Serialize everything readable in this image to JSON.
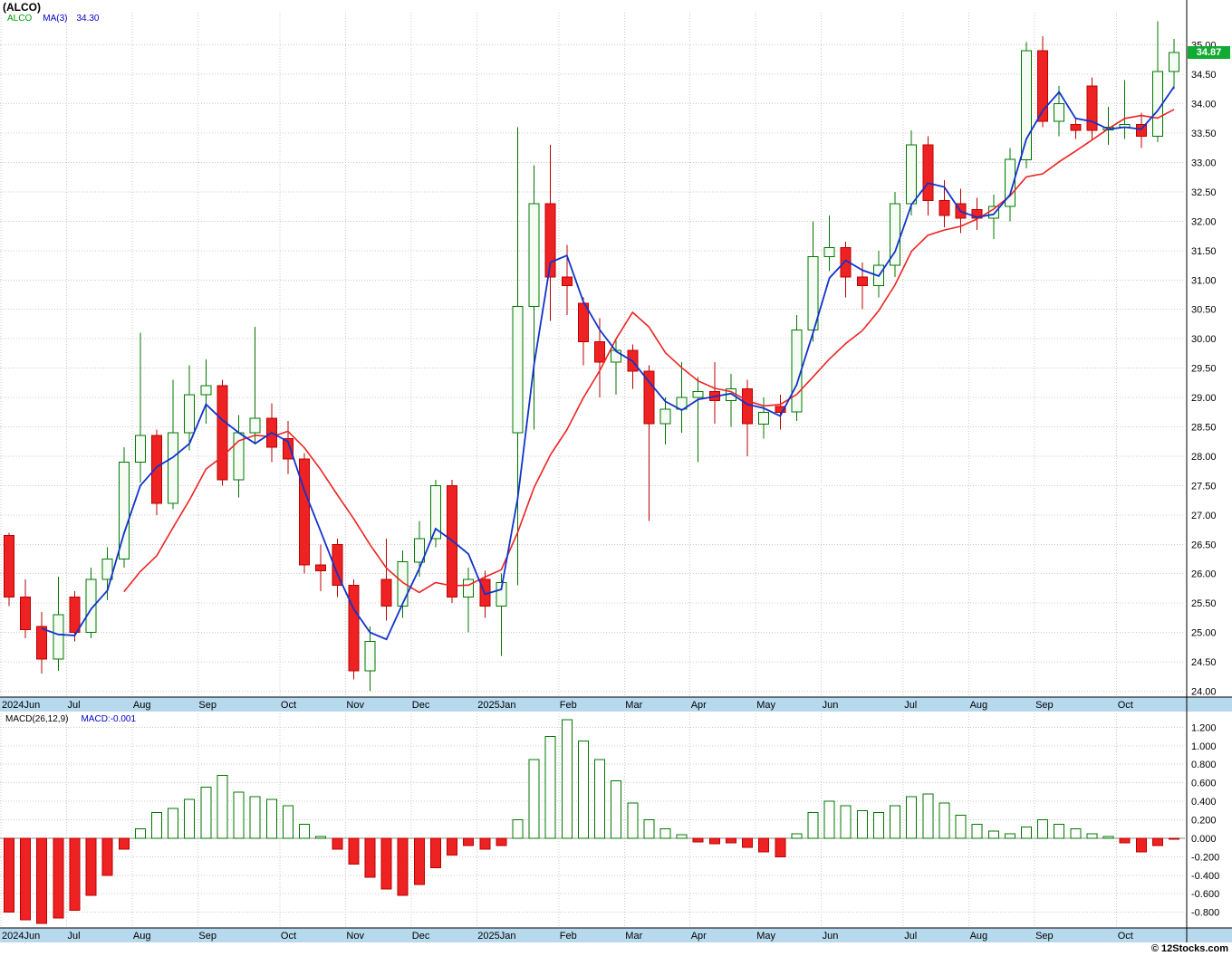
{
  "title": "(ALCO)",
  "legend": {
    "symbol": "ALCO",
    "ma_label": "MA(3)",
    "ma_value": "34.30"
  },
  "macd_legend": {
    "label": "MACD(26,12,9)",
    "value_label": "MACD:-0.001"
  },
  "price_tag": {
    "value": "34.87"
  },
  "copyright": "© 12Stocks.com",
  "colors": {
    "up_fill": "#f4fcf4",
    "up_stroke": "#007700",
    "down_fill": "#ee2222",
    "down_stroke": "#bb0000",
    "ma_fast": "#1133cc",
    "ma_slow": "#ee2222",
    "grid": "#c9c9c9",
    "band_bg": "#b7d9ee",
    "tag_bg": "#11aa33",
    "tag_text": "#ffffff",
    "legend_symbol": "#009900",
    "legend_ma": "#0000cc",
    "macd_pos_fill": "#ffffff",
    "macd_pos_stroke": "#007700",
    "macd_neg": "#ee2222"
  },
  "chart_data": {
    "type": "candlestick",
    "title": "(ALCO)",
    "legend_entries": [
      "ALCO",
      "MA(3) 34.30",
      "MACD(26,12,9)",
      "MACD:-0.001"
    ],
    "price_panel": {
      "ylim": [
        23.9,
        35.55
      ],
      "ticks": [
        "35.00",
        "34.50",
        "34.00",
        "33.50",
        "33.00",
        "32.50",
        "32.00",
        "31.50",
        "31.00",
        "30.50",
        "30.00",
        "29.50",
        "29.00",
        "28.50",
        "28.00",
        "27.50",
        "27.00",
        "26.50",
        "26.00",
        "25.50",
        "25.00",
        "24.50",
        "24.00"
      ],
      "ma_fast_period": 3,
      "ma_slow_period": 8,
      "last_close": 34.87
    },
    "macd_panel": {
      "label": "MACD(26,12,9)",
      "last_value": -0.001,
      "ylim": [
        -0.95,
        1.35
      ],
      "ticks": [
        "1.200",
        "1.000",
        "0.800",
        "0.600",
        "0.400",
        "0.200",
        "0.000",
        "-0.200",
        "-0.400",
        "-0.600",
        "-0.800"
      ],
      "histogram": [
        -0.8,
        -0.88,
        -0.92,
        -0.86,
        -0.78,
        -0.62,
        -0.4,
        -0.12,
        0.1,
        0.28,
        0.32,
        0.42,
        0.55,
        0.68,
        0.5,
        0.45,
        0.42,
        0.35,
        0.15,
        0.02,
        -0.12,
        -0.28,
        -0.42,
        -0.55,
        -0.62,
        -0.5,
        -0.32,
        -0.18,
        -0.08,
        -0.12,
        -0.08,
        0.2,
        0.85,
        1.1,
        1.28,
        1.05,
        0.85,
        0.62,
        0.38,
        0.2,
        0.1,
        0.04,
        -0.04,
        -0.06,
        -0.05,
        -0.1,
        -0.15,
        -0.2,
        0.05,
        0.28,
        0.4,
        0.35,
        0.3,
        0.28,
        0.35,
        0.45,
        0.48,
        0.38,
        0.25,
        0.15,
        0.08,
        0.05,
        0.12,
        0.2,
        0.15,
        0.1,
        0.05,
        0.02,
        -0.05,
        -0.15,
        -0.08,
        -0.001
      ]
    },
    "months": [
      {
        "label": "2024Jun",
        "i": 0
      },
      {
        "label": "Jul",
        "i": 4
      },
      {
        "label": "Aug",
        "i": 8
      },
      {
        "label": "Sep",
        "i": 12
      },
      {
        "label": "Oct",
        "i": 17
      },
      {
        "label": "Nov",
        "i": 21
      },
      {
        "label": "Dec",
        "i": 25
      },
      {
        "label": "2025Jan",
        "i": 29
      },
      {
        "label": "Feb",
        "i": 34
      },
      {
        "label": "Mar",
        "i": 38
      },
      {
        "label": "Apr",
        "i": 42
      },
      {
        "label": "May",
        "i": 46
      },
      {
        "label": "Jun",
        "i": 50
      },
      {
        "label": "Jul",
        "i": 55
      },
      {
        "label": "Aug",
        "i": 59
      },
      {
        "label": "Sep",
        "i": 63
      },
      {
        "label": "Oct",
        "i": 68
      }
    ],
    "candles": [
      [
        26.65,
        26.7,
        25.45,
        25.6
      ],
      [
        25.6,
        25.9,
        24.9,
        25.05
      ],
      [
        25.1,
        25.35,
        24.3,
        24.55
      ],
      [
        24.55,
        25.95,
        24.35,
        25.3
      ],
      [
        25.6,
        25.7,
        24.85,
        25.0
      ],
      [
        25.0,
        26.1,
        24.9,
        25.9
      ],
      [
        25.9,
        26.45,
        25.55,
        26.25
      ],
      [
        26.25,
        28.15,
        26.1,
        27.9
      ],
      [
        27.9,
        30.1,
        27.55,
        28.35
      ],
      [
        28.35,
        28.45,
        27.0,
        27.2
      ],
      [
        27.2,
        29.3,
        27.1,
        28.4
      ],
      [
        28.4,
        29.55,
        28.1,
        29.05
      ],
      [
        29.05,
        29.65,
        28.55,
        29.2
      ],
      [
        29.2,
        29.3,
        27.5,
        27.6
      ],
      [
        27.6,
        28.7,
        27.3,
        28.4
      ],
      [
        28.4,
        30.2,
        28.2,
        28.65
      ],
      [
        28.65,
        28.9,
        27.9,
        28.15
      ],
      [
        28.3,
        28.6,
        27.7,
        27.95
      ],
      [
        27.95,
        28.05,
        26.0,
        26.15
      ],
      [
        26.15,
        26.5,
        25.7,
        26.05
      ],
      [
        26.5,
        26.6,
        25.6,
        25.8
      ],
      [
        25.8,
        25.9,
        24.2,
        24.35
      ],
      [
        24.35,
        25.1,
        24.0,
        24.85
      ],
      [
        25.9,
        26.6,
        25.2,
        25.45
      ],
      [
        25.45,
        26.4,
        25.25,
        26.2
      ],
      [
        26.2,
        26.9,
        25.95,
        26.6
      ],
      [
        26.6,
        27.6,
        26.45,
        27.5
      ],
      [
        27.5,
        27.6,
        25.5,
        25.6
      ],
      [
        25.6,
        26.1,
        25.0,
        25.9
      ],
      [
        25.9,
        26.05,
        25.25,
        25.45
      ],
      [
        25.45,
        26.0,
        24.6,
        25.85
      ],
      [
        28.4,
        33.6,
        25.8,
        30.55
      ],
      [
        30.55,
        32.95,
        28.45,
        32.3
      ],
      [
        32.3,
        33.3,
        30.3,
        31.05
      ],
      [
        31.05,
        31.6,
        30.4,
        30.9
      ],
      [
        30.6,
        30.7,
        29.55,
        29.95
      ],
      [
        29.95,
        30.35,
        29.0,
        29.6
      ],
      [
        29.6,
        30.0,
        29.05,
        29.8
      ],
      [
        29.8,
        29.9,
        29.15,
        29.45
      ],
      [
        29.45,
        29.55,
        26.9,
        28.55
      ],
      [
        28.55,
        29.0,
        28.2,
        28.8
      ],
      [
        28.8,
        29.6,
        28.4,
        29.0
      ],
      [
        29.0,
        29.35,
        27.9,
        29.1
      ],
      [
        29.1,
        29.6,
        28.55,
        28.95
      ],
      [
        28.95,
        29.4,
        28.5,
        29.15
      ],
      [
        29.15,
        29.3,
        28.0,
        28.55
      ],
      [
        28.55,
        29.0,
        28.3,
        28.75
      ],
      [
        28.85,
        29.05,
        28.45,
        28.75
      ],
      [
        28.75,
        30.4,
        28.6,
        30.15
      ],
      [
        30.15,
        32.0,
        29.95,
        31.4
      ],
      [
        31.4,
        32.1,
        31.15,
        31.55
      ],
      [
        31.55,
        31.65,
        30.7,
        31.05
      ],
      [
        31.05,
        31.3,
        30.5,
        30.9
      ],
      [
        30.9,
        31.5,
        30.7,
        31.25
      ],
      [
        31.25,
        32.5,
        31.05,
        32.3
      ],
      [
        32.3,
        33.55,
        32.1,
        33.3
      ],
      [
        33.3,
        33.45,
        32.1,
        32.35
      ],
      [
        32.35,
        32.7,
        31.9,
        32.1
      ],
      [
        32.3,
        32.55,
        31.8,
        32.05
      ],
      [
        32.2,
        32.4,
        31.85,
        32.05
      ],
      [
        32.05,
        32.45,
        31.7,
        32.25
      ],
      [
        32.25,
        33.25,
        32.0,
        33.05
      ],
      [
        33.05,
        35.05,
        32.9,
        34.9
      ],
      [
        34.9,
        35.15,
        33.6,
        33.7
      ],
      [
        33.7,
        34.3,
        33.45,
        34.0
      ],
      [
        33.65,
        33.75,
        33.4,
        33.55
      ],
      [
        34.3,
        34.45,
        33.4,
        33.55
      ],
      [
        33.55,
        33.95,
        33.3,
        33.6
      ],
      [
        33.6,
        34.4,
        33.4,
        33.65
      ],
      [
        33.65,
        33.85,
        33.25,
        33.45
      ],
      [
        33.45,
        35.4,
        33.35,
        34.55
      ],
      [
        34.55,
        35.1,
        34.25,
        34.87
      ]
    ]
  }
}
